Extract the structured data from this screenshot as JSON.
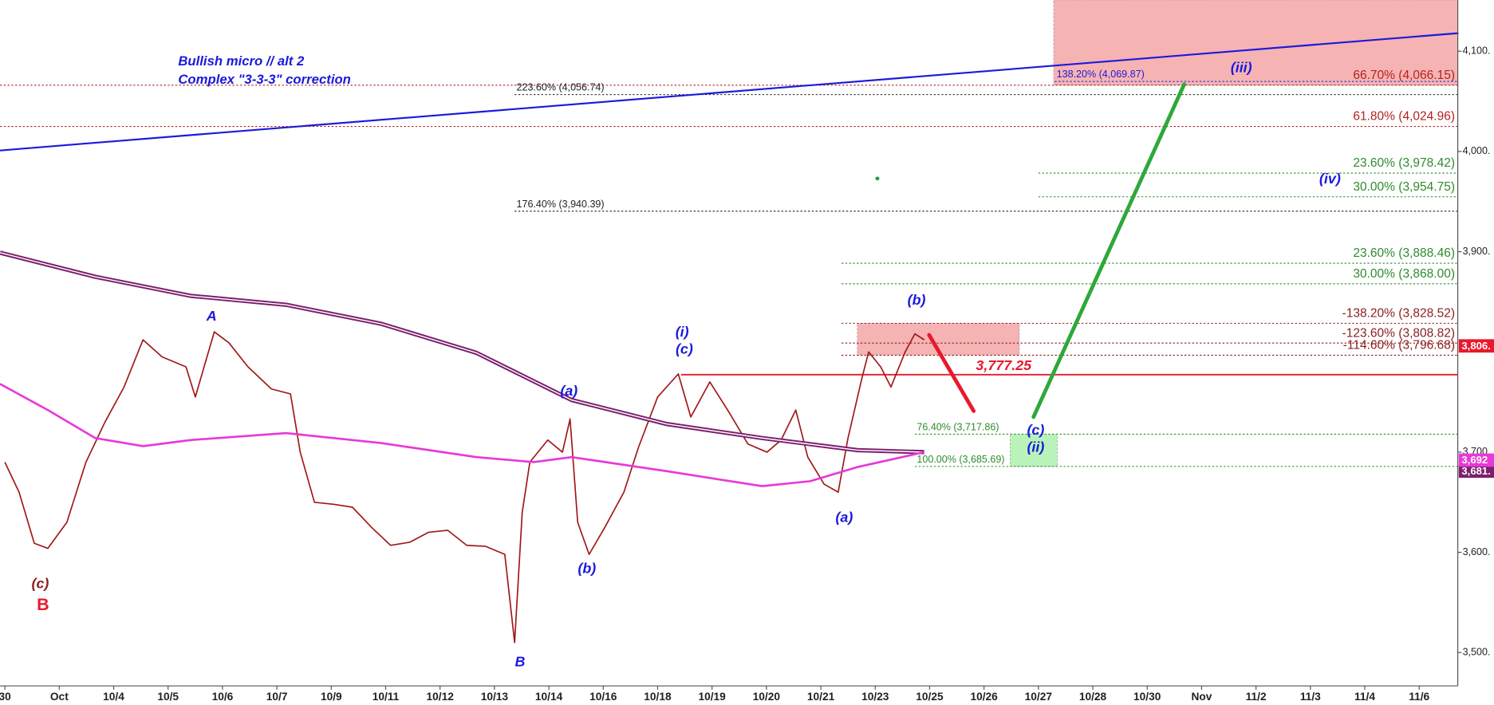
{
  "chart_data": {
    "type": "line",
    "title_lines": [
      "Bullish micro // alt 2",
      "Complex \"3-3-3\" correction"
    ],
    "xlim": [
      -0.09,
      26.71
    ],
    "ylim": [
      3466.7,
      4151.1
    ],
    "xticks": [
      {
        "value": 0,
        "label": "30"
      },
      {
        "value": 1,
        "label": "Oct"
      },
      {
        "value": 2,
        "label": "10/4"
      },
      {
        "value": 3,
        "label": "10/5"
      },
      {
        "value": 4,
        "label": "10/6"
      },
      {
        "value": 5,
        "label": "10/7"
      },
      {
        "value": 6,
        "label": "10/9"
      },
      {
        "value": 7,
        "label": "10/11"
      },
      {
        "value": 8,
        "label": "10/12"
      },
      {
        "value": 9,
        "label": "10/13"
      },
      {
        "value": 10,
        "label": "10/14"
      },
      {
        "value": 11,
        "label": "10/16"
      },
      {
        "value": 12,
        "label": "10/18"
      },
      {
        "value": 13,
        "label": "10/19"
      },
      {
        "value": 14,
        "label": "10/20"
      },
      {
        "value": 15,
        "label": "10/21"
      },
      {
        "value": 16,
        "label": "10/23"
      },
      {
        "value": 17,
        "label": "10/25"
      },
      {
        "value": 18,
        "label": "10/26"
      },
      {
        "value": 19,
        "label": "10/27"
      },
      {
        "value": 20,
        "label": "10/28"
      },
      {
        "value": 21,
        "label": "10/30"
      },
      {
        "value": 22,
        "label": "Nov"
      },
      {
        "value": 23,
        "label": "11/2"
      },
      {
        "value": 24,
        "label": "11/3"
      },
      {
        "value": 25,
        "label": "11/4"
      },
      {
        "value": 26,
        "label": "11/6"
      }
    ],
    "yticks": [
      {
        "value": 3500,
        "label": "3,500."
      },
      {
        "value": 3600,
        "label": "3,600."
      },
      {
        "value": 3700,
        "label": "3,700."
      },
      {
        "value": 3900,
        "label": "3,900."
      },
      {
        "value": 4000,
        "label": "4,000."
      },
      {
        "value": 4100,
        "label": "4,100."
      }
    ],
    "series": [
      {
        "color": "#a01818",
        "x": [
          0,
          0.26,
          0.54,
          0.79,
          1.14,
          1.49,
          1.84,
          2.19,
          2.54,
          2.89,
          3.33,
          3.5,
          3.85,
          4.12,
          4.47,
          4.9,
          5.25,
          5.43,
          5.69,
          6.04,
          6.39,
          6.74,
          7.09,
          7.44,
          7.79,
          8.14,
          8.49,
          8.84,
          9.19,
          9.37,
          9.51,
          9.65,
          9.98,
          10.25,
          10.39,
          10.53,
          10.74,
          11.03,
          11.38,
          11.65,
          12.0,
          12.38,
          12.61,
          12.96,
          13.31,
          13.66,
          14.01,
          14.27,
          14.54,
          14.76,
          15.06,
          15.32,
          15.5,
          15.76,
          15.88,
          16.1,
          16.29,
          16.55,
          16.73,
          16.9
        ],
        "values": [
          3690,
          3660,
          3609,
          3604,
          3630,
          3690,
          3730,
          3765,
          3812,
          3795,
          3785,
          3755,
          3820,
          3809,
          3785,
          3763,
          3758,
          3700,
          3650,
          3648,
          3645,
          3625,
          3607,
          3610,
          3620,
          3622,
          3607,
          3606,
          3598,
          3510,
          3640,
          3690,
          3712,
          3700,
          3733,
          3630,
          3598,
          3625,
          3660,
          3705,
          3755,
          3778,
          3735,
          3770,
          3740,
          3708,
          3700,
          3712,
          3742,
          3695,
          3668,
          3660,
          3714,
          3775,
          3800,
          3785,
          3765,
          3800,
          3818,
          3812
        ]
      },
      {
        "color": "#7b1f6e",
        "x": [
          -0.09,
          1.66,
          3.41,
          5.17,
          6.92,
          8.67,
          10.42,
          12.17,
          13.92,
          15.67,
          16.9
        ],
        "values": [
          3899,
          3875,
          3856,
          3847,
          3828,
          3799,
          3752,
          3728,
          3714,
          3702,
          3700
        ]
      },
      {
        "color": "#e838d8",
        "x": [
          -0.09,
          0.79,
          1.66,
          2.54,
          3.41,
          5.17,
          6.92,
          8.67,
          9.72,
          10.42,
          12.17,
          13.92,
          14.8,
          15.67,
          16.9
        ],
        "values": [
          3768,
          3742,
          3714,
          3706,
          3712,
          3719,
          3709,
          3695,
          3690,
          3695,
          3681,
          3666,
          3671,
          3685,
          3700
        ]
      }
    ],
    "levels": [
      {
        "label": "66.70% (4,066.15)",
        "value": 4066.15,
        "x_start": -0.09,
        "color": "#b22222",
        "label_side": "right"
      },
      {
        "label": "223.60% (4,056.74)",
        "value": 4056.74,
        "x_start": 9.37,
        "color": "#222222",
        "label_side": "left"
      },
      {
        "label": "61.80% (4,024.96)",
        "value": 4024.96,
        "x_start": -0.09,
        "color": "#b22222",
        "label_side": "right"
      },
      {
        "label": "23.60% (3,978.42)",
        "value": 3978.42,
        "x_start": 19.0,
        "color": "#2e8b2e",
        "label_side": "right"
      },
      {
        "label": "30.00% (3,954.75)",
        "value": 3954.75,
        "x_start": 19.0,
        "color": "#2e8b2e",
        "label_side": "right"
      },
      {
        "label": "176.40% (3,940.39)",
        "value": 3940.39,
        "x_start": 9.37,
        "color": "#222222",
        "label_side": "left"
      },
      {
        "label": "23.60% (3,888.46)",
        "value": 3888.46,
        "x_start": 15.38,
        "color": "#2e8b2e",
        "label_side": "right"
      },
      {
        "label": "30.00% (3,868.00)",
        "value": 3868.0,
        "x_start": 15.38,
        "color": "#2e8b2e",
        "label_side": "right"
      },
      {
        "label": "-138.20% (3,828.52)",
        "value": 3828.52,
        "x_start": 15.38,
        "color": "#8b2020",
        "label_side": "right"
      },
      {
        "label": "-123.60% (3,808.82)",
        "value": 3808.82,
        "x_start": 15.38,
        "color": "#8b2020",
        "label_side": "right"
      },
      {
        "label": "-114.60% (3,796.68)",
        "value": 3796.68,
        "x_start": 15.38,
        "color": "#8b2020",
        "label_side": "right"
      },
      {
        "label": "76.40% (3,717.86)",
        "value": 3717.86,
        "x_start": 16.73,
        "color": "#2e8b2e",
        "label_side": "left"
      },
      {
        "label": "100.00% (3,685.69)",
        "value": 3685.69,
        "x_start": 16.73,
        "color": "#2e8b2e",
        "label_side": "left"
      },
      {
        "label": "3,777.25",
        "value": 3777.25,
        "x_start": 12.43,
        "color": "#e8192c",
        "solid": true,
        "label_x": 17.85
      },
      {
        "label": "138.20% (4,069.87)",
        "value": 4069.87,
        "x_start": 19.3,
        "color": "#1a1adc",
        "label_side": "left"
      }
    ],
    "zones": [
      {
        "x": [
          19.28,
          26.71
        ],
        "y": [
          4066.15,
          4151.1
        ],
        "color": "#f4a0a0"
      },
      {
        "x": [
          15.67,
          18.65
        ],
        "y": [
          3796.68,
          3828.52
        ],
        "color": "#f4a0a0"
      },
      {
        "x": [
          18.48,
          19.35
        ],
        "y": [
          3685.69,
          3717.86
        ],
        "color": "#a8f0a8"
      }
    ],
    "trendlines": [
      {
        "x": [
          -0.09,
          26.71
        ],
        "values": [
          4001,
          4118
        ],
        "color": "#1a1adc"
      },
      {
        "x": [
          18.91,
          21.68
        ],
        "values": [
          3735,
          4067
        ],
        "color": "#2ea83a",
        "arrow": true
      },
      {
        "x": [
          16.99,
          17.81
        ],
        "values": [
          3817,
          3741
        ],
        "color": "#e8192c",
        "arrow": true
      }
    ],
    "price_tags": [
      {
        "label": "3,681.",
        "value": 3681,
        "color": "#7b1f6e"
      },
      {
        "label": "3,692",
        "value": 3692,
        "color": "#e838d8"
      },
      {
        "label": "3,806.",
        "value": 3806,
        "color": "#e8192c"
      }
    ],
    "annotations": [
      {
        "text": "(c)",
        "x": 0.65,
        "y": 3568,
        "color": "#8b2020"
      },
      {
        "text": "B",
        "x": 0.7,
        "y": 3547,
        "color": "#e8192c",
        "bold": true
      },
      {
        "text": "A",
        "x": 3.8,
        "y": 3835,
        "color": "#1a1adc"
      },
      {
        "text": "B",
        "x": 9.47,
        "y": 3490,
        "color": "#1a1adc"
      },
      {
        "text": "(a)",
        "x": 10.37,
        "y": 3760,
        "color": "#1a1adc"
      },
      {
        "text": "(b)",
        "x": 10.7,
        "y": 3583,
        "color": "#1a1adc"
      },
      {
        "text": "(i)",
        "x": 12.45,
        "y": 3819,
        "color": "#1a1adc"
      },
      {
        "text": "(c)",
        "x": 12.49,
        "y": 3802,
        "color": "#1a1adc"
      },
      {
        "text": "(a)",
        "x": 15.43,
        "y": 3634,
        "color": "#1a1adc"
      },
      {
        "text": "(b)",
        "x": 16.76,
        "y": 3851,
        "color": "#1a1adc"
      },
      {
        "text": "(iii)",
        "x": 22.73,
        "y": 4083,
        "color": "#1a1adc"
      },
      {
        "text": "(iv)",
        "x": 24.36,
        "y": 3972,
        "color": "#1a1adc"
      },
      {
        "text": "(c)",
        "x": 18.95,
        "y": 3721,
        "color": "#1a1adc"
      },
      {
        "text": "(ii)",
        "x": 18.95,
        "y": 3704,
        "color": "#1a1adc"
      }
    ],
    "dot": {
      "x": 16.04,
      "y": 3973,
      "color": "#1a9a3a"
    }
  }
}
